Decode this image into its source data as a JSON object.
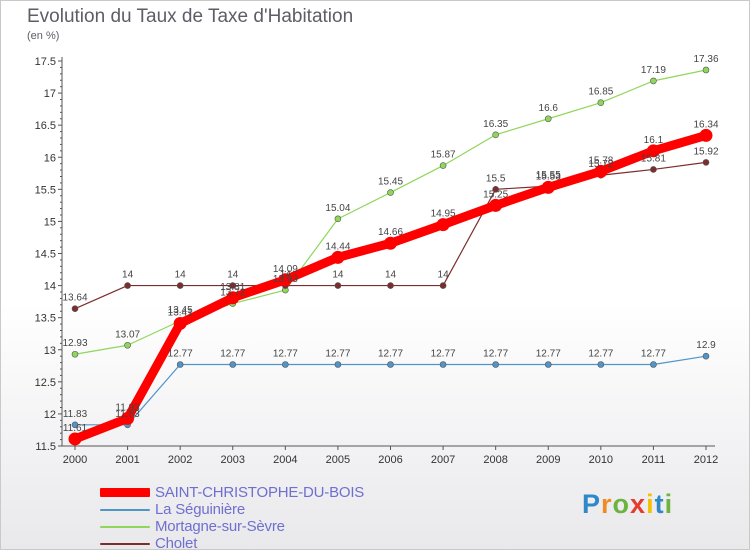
{
  "title": "Evolution du Taux de Taxe d'Habitation",
  "subtitle": "(en %)",
  "logo": {
    "letters": [
      "P",
      "r",
      "o",
      "x",
      "i",
      "t",
      "i"
    ],
    "colors": [
      "#2f88c8",
      "#f08a24",
      "#6cb33f",
      "#e63a2e",
      "#f5c100",
      "#2f88c8",
      "#6cb33f"
    ]
  },
  "chart_data": {
    "type": "line",
    "title": "Evolution du Taux de Taxe d'Habitation",
    "ylabel": "(en %)",
    "x": [
      "2000",
      "2001",
      "2002",
      "2003",
      "2004",
      "2005",
      "2006",
      "2007",
      "2008",
      "2009",
      "2010",
      "2011",
      "2012"
    ],
    "yticks": [
      "11.5",
      "12",
      "12.5",
      "13",
      "13.5",
      "14",
      "14.5",
      "15",
      "15.5",
      "16",
      "16.5",
      "17",
      "17.5"
    ],
    "ylim": [
      11.5,
      17.5
    ],
    "grid": false,
    "legend_position": "bottom-left",
    "series": [
      {
        "name": "SAINT-CHRISTOPHE-DU-BOIS",
        "color": "#ff0000",
        "width": 9,
        "marker": 6.5,
        "values": [
          11.61,
          11.93,
          13.41,
          13.81,
          14.09,
          14.44,
          14.66,
          14.95,
          15.25,
          15.53,
          15.78,
          16.1,
          16.34
        ],
        "labels": [
          "11.61",
          "11.93",
          "13.41",
          "13.81",
          "14.09",
          "14.44",
          "14.66",
          "14.95",
          "15.25",
          "15.53",
          "15.78",
          "16.1",
          "16.34"
        ]
      },
      {
        "name": "La Séguinière",
        "color": "#4f95c8",
        "width": 1.2,
        "marker": 3,
        "values": [
          11.83,
          11.83,
          12.77,
          12.77,
          12.77,
          12.77,
          12.77,
          12.77,
          12.77,
          12.77,
          12.77,
          12.77,
          12.9
        ],
        "labels": [
          "11.83",
          "11.83",
          "12.77",
          "12.77",
          "12.77",
          "12.77",
          "12.77",
          "12.77",
          "12.77",
          "12.77",
          "12.77",
          "12.77",
          "12.9"
        ]
      },
      {
        "name": "Mortagne-sur-Sèvre",
        "color": "#8fd65a",
        "width": 1.2,
        "marker": 3,
        "values": [
          12.93,
          13.07,
          13.45,
          13.72,
          13.93,
          15.04,
          15.45,
          15.87,
          16.35,
          16.6,
          16.85,
          17.19,
          17.36
        ],
        "labels": [
          "12.93",
          "13.07",
          "13.45",
          "13.72",
          "13.93",
          "15.04",
          "15.45",
          "15.87",
          "16.35",
          "16.6",
          "16.85",
          "17.19",
          "17.36"
        ]
      },
      {
        "name": "Cholet",
        "color": "#7b2e2e",
        "width": 1.2,
        "marker": 3,
        "values": [
          13.64,
          14,
          14,
          14,
          14,
          14,
          14,
          14,
          15.5,
          15.55,
          15.72,
          15.81,
          15.92
        ],
        "labels": [
          "13.64",
          "14",
          "14",
          "14",
          "14",
          "14",
          "14",
          "14",
          "15.5",
          "15.55",
          "15.72",
          "15.81",
          "15.92"
        ]
      }
    ]
  }
}
